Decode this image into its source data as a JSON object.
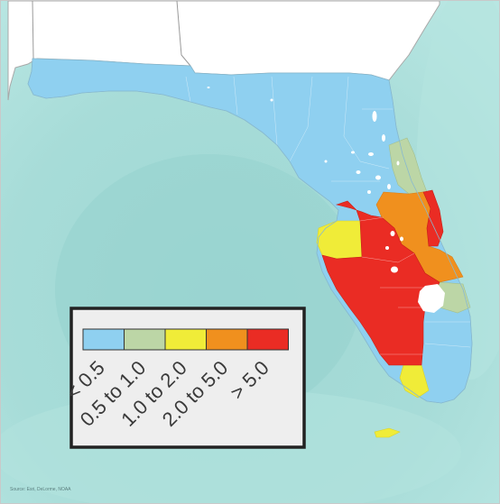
{
  "legend": {
    "categories": [
      {
        "label": "< 0.5",
        "color": "#8fd0f0"
      },
      {
        "label": "0.5 to 1.0",
        "color": "#bcd6a6"
      },
      {
        "label": "1.0 to 2.0",
        "color": "#f0ec38"
      },
      {
        "label": "2.0 to 5.0",
        "color": "#f0901e"
      },
      {
        "label": "> 5.0",
        "color": "#ea2c24"
      }
    ]
  },
  "source": "Source: Esri, DeLorme, NOAA",
  "colors": {
    "ocean_light": "#bfe8e4",
    "ocean": "#9fd8d4",
    "ocean_deep": "#86cbc8",
    "land_outside": "#ffffff",
    "state_border": "#9a9a9a",
    "legend_bg": "#eeeeee",
    "legend_border": "#222222"
  }
}
